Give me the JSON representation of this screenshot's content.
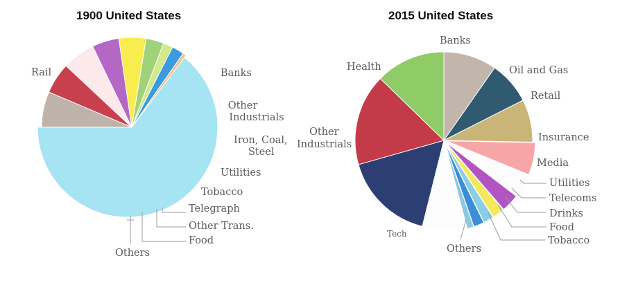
{
  "chart_data": [
    {
      "type": "pie",
      "title": "1900 United States",
      "slices": [
        {
          "label": "Rail",
          "value": 62.8,
          "color": "#a6e3f3"
        },
        {
          "label": "Banks",
          "value": 6.2,
          "color": "#bfb2a8"
        },
        {
          "label": "Other Industrials",
          "value": 5.4,
          "color": "#c8404e"
        },
        {
          "label": "Iron, Coal, Steel",
          "value": 5.7,
          "color": "#fbe9ec"
        },
        {
          "label": "Utilities",
          "value": 4.7,
          "color": "#b567c6"
        },
        {
          "label": "Tobacco",
          "value": 4.7,
          "color": "#f8ed4e"
        },
        {
          "label": "Telegraph",
          "value": 3.1,
          "color": "#9fd27a"
        },
        {
          "label": "Other Trans.",
          "value": 1.7,
          "color": "#d2e98c"
        },
        {
          "label": "Food",
          "value": 2.1,
          "color": "#3a9be0"
        },
        {
          "label": "Others",
          "value": 0.6,
          "color": "#f4c089"
        }
      ]
    },
    {
      "type": "pie",
      "title": "2015 United States",
      "slices": [
        {
          "label": "Banks",
          "value": 9.7,
          "color": "#c2b5ac"
        },
        {
          "label": "Oil and Gas",
          "value": 7.8,
          "color": "#2f5a70"
        },
        {
          "label": "Retail",
          "value": 7.8,
          "color": "#c9b577"
        },
        {
          "label": "Insurance",
          "value": 5.9,
          "color": "#f7a6a8"
        },
        {
          "label": "Media",
          "value": 4.2,
          "color": "#fcfcfc"
        },
        {
          "label": "Utilities",
          "value": 3.3,
          "color": "#b255c2"
        },
        {
          "label": "Telecoms",
          "value": 2.2,
          "color": "#f5e85a"
        },
        {
          "label": "Drinks",
          "value": 1.9,
          "color": "#8acfe8"
        },
        {
          "label": "Food",
          "value": 1.9,
          "color": "#3c8ed7"
        },
        {
          "label": "Tobacco",
          "value": 1.2,
          "color": "#88c9e5"
        },
        {
          "label": "Others",
          "value": 8.0,
          "color": "#fdfdfd"
        },
        {
          "label": "Tech",
          "value": 16.7,
          "color": "#2d3e72"
        },
        {
          "label": "Other Industrials",
          "value": 16.7,
          "color": "#c33a48"
        },
        {
          "label": "Health",
          "value": 12.7,
          "color": "#8fcb67"
        }
      ]
    }
  ]
}
